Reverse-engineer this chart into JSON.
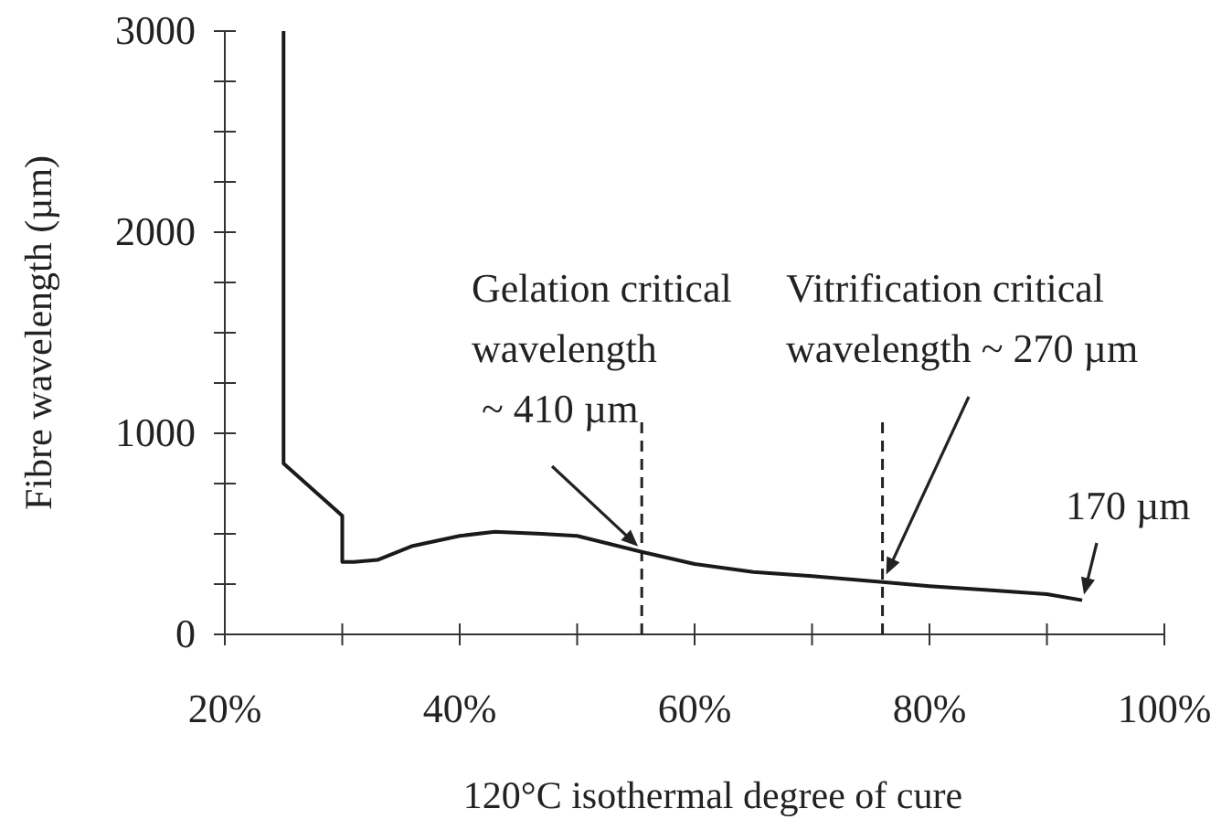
{
  "chart_data": {
    "type": "line",
    "xlabel": "120°C isothermal degree of cure",
    "ylabel": "Fibre wavelength (µm)",
    "x": [
      25,
      25,
      30,
      30,
      31,
      33,
      36,
      40,
      43,
      47,
      50,
      55.5,
      60,
      65,
      70,
      76,
      80,
      85,
      90,
      93
    ],
    "values": [
      3000,
      850,
      590,
      360,
      360,
      370,
      440,
      490,
      510,
      500,
      490,
      410,
      350,
      310,
      290,
      260,
      240,
      220,
      200,
      170
    ],
    "color": "#1a1a1a",
    "xlim": [
      20,
      100
    ],
    "xticks": [
      {
        "value": 20,
        "label": "20%"
      },
      {
        "value": 30,
        "label": null
      },
      {
        "value": 40,
        "label": "40%"
      },
      {
        "value": 50,
        "label": null
      },
      {
        "value": 60,
        "label": "60%"
      },
      {
        "value": 70,
        "label": null
      },
      {
        "value": 80,
        "label": "80%"
      },
      {
        "value": 90,
        "label": null
      },
      {
        "value": 100,
        "label": "100%"
      }
    ],
    "ylim": [
      0,
      3000
    ],
    "yticks": [
      0,
      {
        "value": 250,
        "label": null
      },
      {
        "value": 500,
        "label": null
      },
      {
        "value": 750,
        "label": null
      },
      1000,
      {
        "value": 1250,
        "label": null
      },
      {
        "value": 1500,
        "label": null
      },
      {
        "value": 1750,
        "label": null
      },
      2000,
      {
        "value": 2250,
        "label": null
      },
      {
        "value": 2500,
        "label": null
      },
      {
        "value": 2750,
        "label": null
      },
      3000
    ],
    "ref_lines": [
      {
        "axis": "x",
        "value": 55.5,
        "line_style": "dashed"
      },
      {
        "axis": "x",
        "value": 76,
        "line_style": "dashed"
      }
    ],
    "annotations": [
      {
        "text": "Gelation critical\nwavelength\n ~ 410 µm",
        "x": 55.5,
        "y": 410
      },
      {
        "text": "Vitrification critical\nwavelength ~ 270 µm",
        "x": 76,
        "y": 270
      },
      {
        "text": "170 µm",
        "x": 93,
        "y": 170
      }
    ],
    "grid": false,
    "marker": "none",
    "line_style": "solid"
  }
}
